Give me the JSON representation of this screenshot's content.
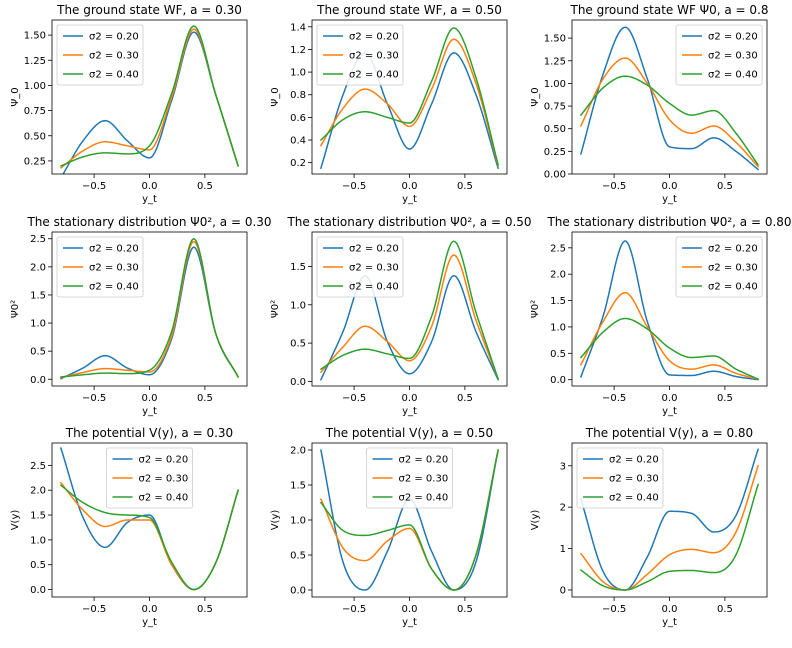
{
  "chart_data": [
    {
      "type": "line",
      "title": "The ground state WF, a = 0.30",
      "xlabel": "y_t",
      "ylabel": "Ψ_0",
      "xlim": [
        -0.88,
        0.88
      ],
      "ylim": [
        0.12,
        1.65
      ],
      "xticks": [
        -0.5,
        0.0,
        0.5
      ],
      "xtick_labels": [
        "−0.5",
        "0.0",
        "0.5"
      ],
      "yticks": [
        0.25,
        0.5,
        0.75,
        1.0,
        1.25,
        1.5
      ],
      "ytick_labels": [
        "0.25",
        "0.50",
        "0.75",
        "1.00",
        "1.25",
        "1.50"
      ],
      "legend": "top-left",
      "grid": false,
      "x": [
        -0.8,
        -0.6,
        -0.4,
        -0.2,
        0.0,
        0.2,
        0.4,
        0.6,
        0.8
      ],
      "series": [
        {
          "name": "σ2 = 0.20",
          "color": "#1f77b4",
          "values": [
            0.08,
            0.45,
            0.65,
            0.45,
            0.28,
            0.85,
            1.53,
            0.9,
            0.2
          ]
        },
        {
          "name": "σ2 = 0.30",
          "color": "#ff7f0e",
          "values": [
            0.18,
            0.35,
            0.44,
            0.4,
            0.36,
            0.88,
            1.56,
            0.9,
            0.2
          ]
        },
        {
          "name": "σ2 = 0.40",
          "color": "#2ca02c",
          "values": [
            0.2,
            0.29,
            0.33,
            0.32,
            0.4,
            0.92,
            1.59,
            0.9,
            0.2
          ]
        }
      ]
    },
    {
      "type": "line",
      "title": "The ground state WF, a = 0.50",
      "xlabel": "y_t",
      "ylabel": "Ψ_0",
      "xlim": [
        -0.88,
        0.88
      ],
      "ylim": [
        0.1,
        1.46
      ],
      "xticks": [
        -0.5,
        0.0,
        0.5
      ],
      "xtick_labels": [
        "−0.5",
        "0.0",
        "0.5"
      ],
      "yticks": [
        0.2,
        0.4,
        0.6,
        0.8,
        1.0,
        1.2,
        1.4
      ],
      "ytick_labels": [
        "0.2",
        "0.4",
        "0.6",
        "0.8",
        "1.0",
        "1.2",
        "1.4"
      ],
      "legend": "top-left",
      "grid": false,
      "x": [
        -0.8,
        -0.6,
        -0.4,
        -0.2,
        0.0,
        0.2,
        0.4,
        0.6,
        0.8
      ],
      "series": [
        {
          "name": "σ2 = 0.20",
          "color": "#1f77b4",
          "values": [
            0.15,
            0.8,
            1.17,
            0.72,
            0.32,
            0.72,
            1.17,
            0.8,
            0.15
          ]
        },
        {
          "name": "σ2 = 0.30",
          "color": "#ff7f0e",
          "values": [
            0.35,
            0.68,
            0.85,
            0.72,
            0.52,
            0.85,
            1.29,
            0.9,
            0.17
          ]
        },
        {
          "name": "σ2 = 0.40",
          "color": "#2ca02c",
          "values": [
            0.4,
            0.58,
            0.65,
            0.6,
            0.55,
            0.92,
            1.39,
            0.95,
            0.18
          ]
        }
      ]
    },
    {
      "type": "line",
      "title": "The ground state WF Ψ0, a = 0.8",
      "xlabel": "y_t",
      "ylabel": "Ψ_0",
      "xlim": [
        -0.88,
        0.88
      ],
      "ylim": [
        0.0,
        1.7
      ],
      "xticks": [
        -0.5,
        0.0,
        0.5
      ],
      "xtick_labels": [
        "−0.5",
        "0.0",
        "0.5"
      ],
      "yticks": [
        0.0,
        0.25,
        0.5,
        0.75,
        1.0,
        1.25,
        1.5
      ],
      "ytick_labels": [
        "0.00",
        "0.25",
        "0.50",
        "0.75",
        "1.00",
        "1.25",
        "1.50"
      ],
      "legend": "top-right",
      "grid": false,
      "x": [
        -0.8,
        -0.6,
        -0.4,
        -0.2,
        0.0,
        0.2,
        0.4,
        0.6,
        0.8
      ],
      "series": [
        {
          "name": "σ2 = 0.20",
          "color": "#1f77b4",
          "values": [
            0.22,
            1.1,
            1.62,
            1.05,
            0.3,
            0.28,
            0.4,
            0.25,
            0.05
          ]
        },
        {
          "name": "σ2 = 0.30",
          "color": "#ff7f0e",
          "values": [
            0.53,
            1.05,
            1.28,
            1.0,
            0.6,
            0.45,
            0.53,
            0.35,
            0.08
          ]
        },
        {
          "name": "σ2 = 0.40",
          "color": "#2ca02c",
          "values": [
            0.65,
            0.95,
            1.08,
            0.98,
            0.78,
            0.65,
            0.7,
            0.45,
            0.1
          ]
        }
      ]
    },
    {
      "type": "line",
      "title": "The stationary distribution Ψ0², a = 0.30",
      "xlabel": "y_t",
      "ylabel": "Ψ0²",
      "xlim": [
        -0.88,
        0.88
      ],
      "ylim": [
        -0.12,
        2.62
      ],
      "xticks": [
        -0.5,
        0.0,
        0.5
      ],
      "xtick_labels": [
        "−0.5",
        "0.0",
        "0.5"
      ],
      "yticks": [
        0.0,
        0.5,
        1.0,
        1.5,
        2.0,
        2.5
      ],
      "ytick_labels": [
        "0.0",
        "0.5",
        "1.0",
        "1.5",
        "2.0",
        "2.5"
      ],
      "legend": "top-left",
      "grid": false,
      "x": [
        -0.8,
        -0.6,
        -0.4,
        -0.2,
        0.0,
        0.2,
        0.4,
        0.6,
        0.8
      ],
      "series": [
        {
          "name": "σ2 = 0.20",
          "color": "#1f77b4",
          "values": [
            0.01,
            0.2,
            0.42,
            0.2,
            0.08,
            0.72,
            2.35,
            0.8,
            0.04
          ]
        },
        {
          "name": "σ2 = 0.30",
          "color": "#ff7f0e",
          "values": [
            0.03,
            0.12,
            0.19,
            0.16,
            0.13,
            0.77,
            2.45,
            0.8,
            0.04
          ]
        },
        {
          "name": "σ2 = 0.40",
          "color": "#2ca02c",
          "values": [
            0.04,
            0.08,
            0.11,
            0.1,
            0.16,
            0.85,
            2.5,
            0.8,
            0.04
          ]
        }
      ]
    },
    {
      "type": "line",
      "title": "The stationary distribution Ψ0², a = 0.50",
      "xlabel": "y_t",
      "ylabel": "Ψ0²",
      "xlim": [
        -0.88,
        0.88
      ],
      "ylim": [
        -0.06,
        1.95
      ],
      "xticks": [
        -0.5,
        0.0,
        0.5
      ],
      "xtick_labels": [
        "−0.5",
        "0.0",
        "0.5"
      ],
      "yticks": [
        0.0,
        0.5,
        1.0,
        1.5
      ],
      "ytick_labels": [
        "0.0",
        "0.5",
        "1.0",
        "1.5"
      ],
      "legend": "top-left",
      "grid": false,
      "x": [
        -0.8,
        -0.6,
        -0.4,
        -0.2,
        0.0,
        0.2,
        0.4,
        0.6,
        0.8
      ],
      "series": [
        {
          "name": "σ2 = 0.20",
          "color": "#1f77b4",
          "values": [
            0.02,
            0.65,
            1.38,
            0.52,
            0.1,
            0.52,
            1.38,
            0.65,
            0.02
          ]
        },
        {
          "name": "σ2 = 0.30",
          "color": "#ff7f0e",
          "values": [
            0.12,
            0.45,
            0.72,
            0.52,
            0.27,
            0.72,
            1.65,
            0.8,
            0.03
          ]
        },
        {
          "name": "σ2 = 0.40",
          "color": "#2ca02c",
          "values": [
            0.16,
            0.34,
            0.42,
            0.36,
            0.3,
            0.85,
            1.83,
            0.9,
            0.03
          ]
        }
      ]
    },
    {
      "type": "line",
      "title": "The stationary distribution Ψ0², a = 0.80",
      "xlabel": "y_t",
      "ylabel": "Ψ0²",
      "xlim": [
        -0.88,
        0.88
      ],
      "ylim": [
        -0.12,
        2.8
      ],
      "xticks": [
        -0.5,
        0.0,
        0.5
      ],
      "xtick_labels": [
        "−0.5",
        "0.0",
        "0.5"
      ],
      "yticks": [
        0.0,
        0.5,
        1.0,
        1.5,
        2.0,
        2.5
      ],
      "ytick_labels": [
        "0.0",
        "0.5",
        "1.0",
        "1.5",
        "2.0",
        "2.5"
      ],
      "legend": "top-right",
      "grid": false,
      "x": [
        -0.8,
        -0.6,
        -0.4,
        -0.2,
        0.0,
        0.2,
        0.4,
        0.6,
        0.8
      ],
      "series": [
        {
          "name": "σ2 = 0.20",
          "color": "#1f77b4",
          "values": [
            0.05,
            1.2,
            2.63,
            1.1,
            0.09,
            0.08,
            0.16,
            0.06,
            0.0
          ]
        },
        {
          "name": "σ2 = 0.30",
          "color": "#ff7f0e",
          "values": [
            0.28,
            1.1,
            1.65,
            1.0,
            0.36,
            0.2,
            0.28,
            0.12,
            0.01
          ]
        },
        {
          "name": "σ2 = 0.40",
          "color": "#2ca02c",
          "values": [
            0.42,
            0.9,
            1.16,
            0.96,
            0.6,
            0.42,
            0.45,
            0.2,
            0.01
          ]
        }
      ]
    },
    {
      "type": "line",
      "title": "The potential V(y), a = 0.30",
      "xlabel": "y_t",
      "ylabel": "V(y)",
      "xlim": [
        -0.88,
        0.88
      ],
      "ylim": [
        -0.15,
        2.95
      ],
      "xticks": [
        -0.5,
        0.0,
        0.5
      ],
      "xtick_labels": [
        "−0.5",
        "0.0",
        "0.5"
      ],
      "yticks": [
        0.0,
        0.5,
        1.0,
        1.5,
        2.0,
        2.5
      ],
      "ytick_labels": [
        "0.0",
        "0.5",
        "1.0",
        "1.5",
        "2.0",
        "2.5"
      ],
      "legend": "upper center",
      "grid": false,
      "x": [
        -0.8,
        -0.6,
        -0.4,
        -0.2,
        0.0,
        0.2,
        0.4,
        0.6,
        0.8
      ],
      "series": [
        {
          "name": "σ2 = 0.20",
          "color": "#1f77b4",
          "values": [
            2.85,
            1.45,
            0.85,
            1.35,
            1.5,
            0.5,
            0.0,
            0.55,
            2.0
          ]
        },
        {
          "name": "σ2 = 0.30",
          "color": "#ff7f0e",
          "values": [
            2.15,
            1.6,
            1.27,
            1.4,
            1.4,
            0.5,
            0.0,
            0.55,
            2.0
          ]
        },
        {
          "name": "σ2 = 0.40",
          "color": "#2ca02c",
          "values": [
            2.1,
            1.75,
            1.55,
            1.5,
            1.45,
            0.55,
            0.0,
            0.55,
            2.0
          ]
        }
      ]
    },
    {
      "type": "line",
      "title": "The potential V(y), a = 0.50",
      "xlabel": "y_t",
      "ylabel": "V(y)",
      "xlim": [
        -0.88,
        0.88
      ],
      "ylim": [
        -0.1,
        2.1
      ],
      "xticks": [
        -0.5,
        0.0,
        0.5
      ],
      "xtick_labels": [
        "−0.5",
        "0.0",
        "0.5"
      ],
      "yticks": [
        0.0,
        0.5,
        1.0,
        1.5,
        2.0
      ],
      "ytick_labels": [
        "0.0",
        "0.5",
        "1.0",
        "1.5",
        "2.0"
      ],
      "legend": "upper center",
      "grid": false,
      "x": [
        -0.8,
        -0.6,
        -0.4,
        -0.2,
        0.0,
        0.2,
        0.4,
        0.6,
        0.8
      ],
      "series": [
        {
          "name": "σ2 = 0.20",
          "color": "#1f77b4",
          "values": [
            2.0,
            0.4,
            0.0,
            0.55,
            1.3,
            0.55,
            0.0,
            0.4,
            2.0
          ]
        },
        {
          "name": "σ2 = 0.30",
          "color": "#ff7f0e",
          "values": [
            1.3,
            0.6,
            0.42,
            0.7,
            0.88,
            0.3,
            0.0,
            0.5,
            2.0
          ]
        },
        {
          "name": "σ2 = 0.40",
          "color": "#2ca02c",
          "values": [
            1.25,
            0.85,
            0.78,
            0.85,
            0.93,
            0.3,
            0.0,
            0.5,
            2.0
          ]
        }
      ]
    },
    {
      "type": "line",
      "title": "The potential V(y), a = 0.80",
      "xlabel": "y_t",
      "ylabel": "V(y)",
      "xlim": [
        -0.88,
        0.88
      ],
      "ylim": [
        -0.17,
        3.55
      ],
      "xticks": [
        -0.5,
        0.0,
        0.5
      ],
      "xtick_labels": [
        "−0.5",
        "0.0",
        "0.5"
      ],
      "yticks": [
        0,
        1,
        2,
        3
      ],
      "ytick_labels": [
        "0",
        "1",
        "2",
        "3"
      ],
      "legend": "top-left",
      "grid": false,
      "x": [
        -0.8,
        -0.6,
        -0.4,
        -0.2,
        0.0,
        0.2,
        0.4,
        0.6,
        0.8
      ],
      "series": [
        {
          "name": "σ2 = 0.20",
          "color": "#1f77b4",
          "values": [
            2.2,
            0.45,
            0.0,
            0.8,
            1.9,
            1.85,
            1.4,
            1.8,
            3.4
          ]
        },
        {
          "name": "σ2 = 0.30",
          "color": "#ff7f0e",
          "values": [
            0.88,
            0.2,
            0.0,
            0.38,
            0.85,
            0.98,
            0.9,
            1.4,
            3.0
          ]
        },
        {
          "name": "σ2 = 0.40",
          "color": "#2ca02c",
          "values": [
            0.48,
            0.1,
            0.0,
            0.2,
            0.45,
            0.47,
            0.42,
            0.85,
            2.55
          ]
        }
      ]
    }
  ]
}
